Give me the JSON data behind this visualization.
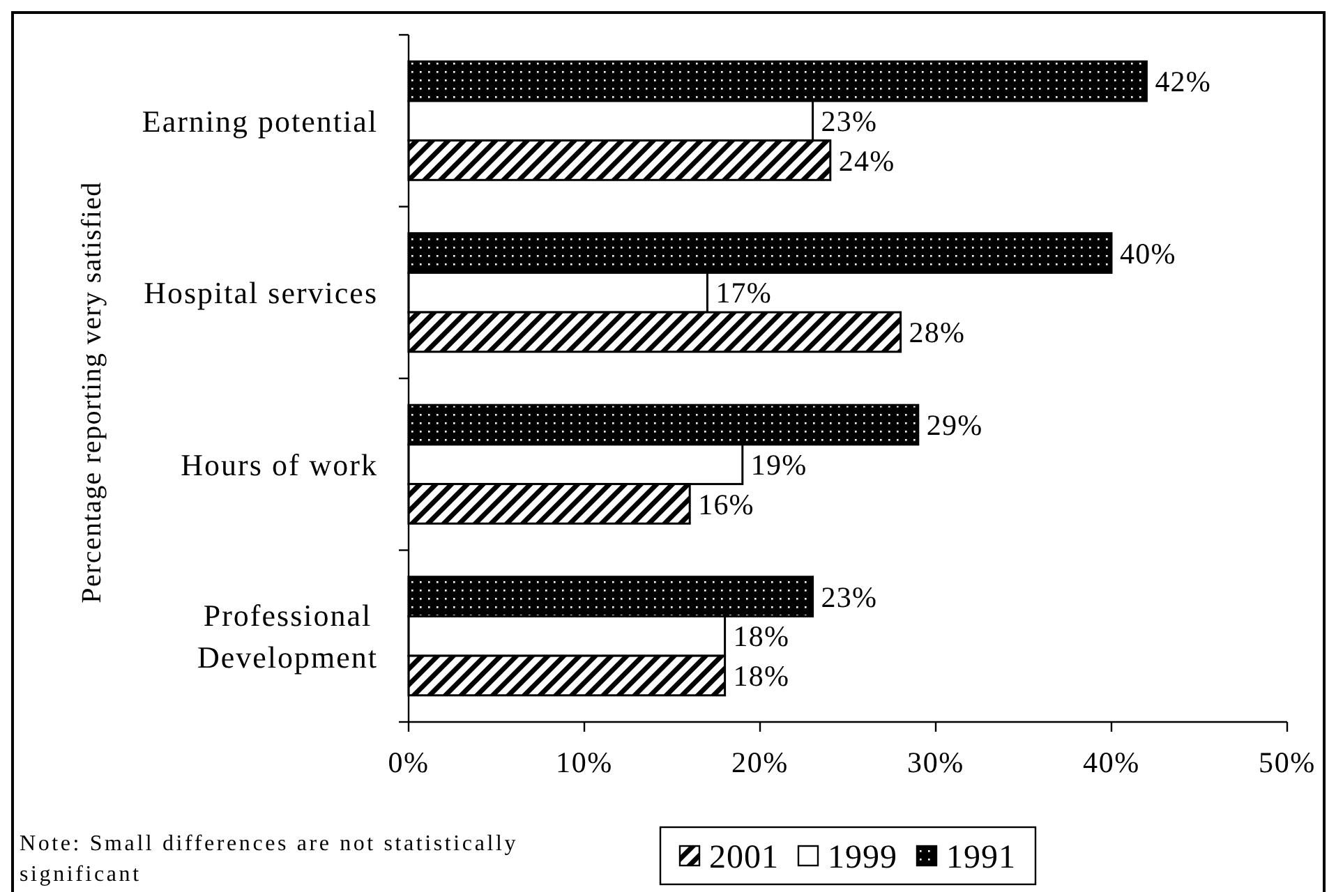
{
  "chart_data": {
    "type": "bar",
    "orientation": "horizontal",
    "ylabel": "Percentage reporting very satisfied",
    "categories": [
      "Earning potential",
      "Hospital services",
      "Hours of work",
      "Professional Development"
    ],
    "series": [
      {
        "name": "1991",
        "color": "#000000",
        "values": [
          42,
          40,
          29,
          23
        ],
        "value_labels": [
          "42%",
          "40%",
          "29%",
          "23%"
        ]
      },
      {
        "name": "1999",
        "color": "#ffffff",
        "values": [
          23,
          17,
          19,
          18
        ],
        "value_labels": [
          "23%",
          "17%",
          "19%",
          "18%"
        ]
      },
      {
        "name": "2001",
        "color": "#000000",
        "values": [
          24,
          28,
          16,
          18
        ],
        "value_labels": [
          "24%",
          "28%",
          "16%",
          "18%"
        ]
      }
    ],
    "xlim": [
      0,
      50
    ],
    "xticks": [
      {
        "value": 0,
        "label": "0%"
      },
      {
        "value": 10,
        "label": "10%"
      },
      {
        "value": 20,
        "label": "20%"
      },
      {
        "value": 30,
        "label": "30%"
      },
      {
        "value": 40,
        "label": "40%"
      },
      {
        "value": 50,
        "label": "50%"
      }
    ],
    "legend": "bottom",
    "annotations": [
      "Note: Small differences are not statistically significant"
    ]
  }
}
